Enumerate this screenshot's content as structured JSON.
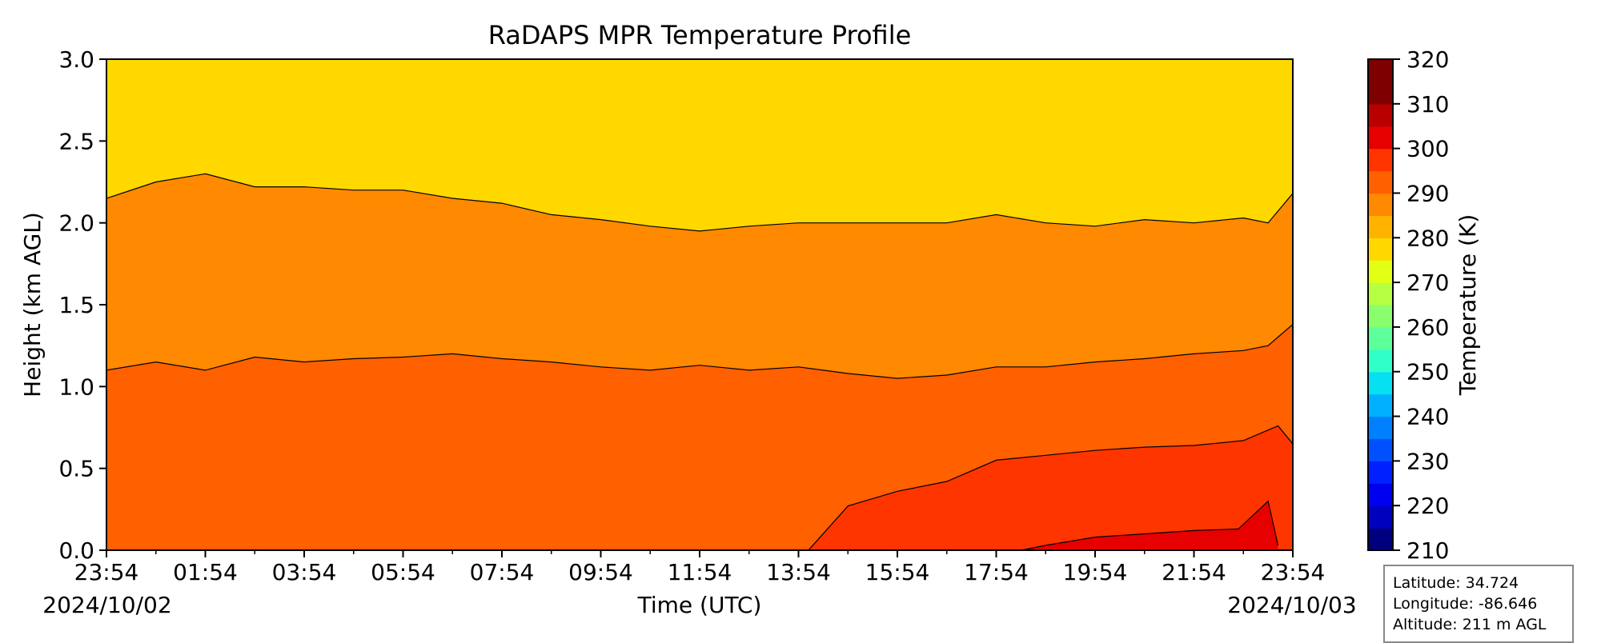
{
  "chart_data": {
    "type": "heatmap",
    "subtype": "filled-contour",
    "title": "RaDAPS MPR Temperature Profile",
    "xlabel": "Time (UTC)",
    "ylabel": "Height (km AGL)",
    "x_tick_labels": [
      "23:54",
      "01:54",
      "03:54",
      "05:54",
      "07:54",
      "09:54",
      "11:54",
      "13:54",
      "15:54",
      "17:54",
      "19:54",
      "21:54",
      "23:54"
    ],
    "x_start_date": "2024/10/02",
    "x_end_date": "2024/10/03",
    "xlim_hours": [
      0,
      24
    ],
    "ylim": [
      0,
      3.0
    ],
    "y_ticks": [
      0.0,
      0.5,
      1.0,
      1.5,
      2.0,
      2.5,
      3.0
    ],
    "y_tick_labels": [
      "0.0",
      "0.5",
      "1.0",
      "1.5",
      "2.0",
      "2.5",
      "3.0"
    ],
    "colorbar": {
      "label": "Temperature (K)",
      "min": 210,
      "max": 320,
      "step": 5,
      "tick_labels": [
        "210",
        "220",
        "230",
        "240",
        "250",
        "260",
        "270",
        "280",
        "290",
        "300",
        "310",
        "320"
      ],
      "colors": [
        "#00007f",
        "#0000bf",
        "#0000f1",
        "#0020ff",
        "#0050ff",
        "#0080ff",
        "#00b0ff",
        "#07e0f0",
        "#30ffc7",
        "#5cff9a",
        "#89ff6d",
        "#b6ff41",
        "#e3ff13",
        "#ffd800",
        "#ffb200",
        "#ff8900",
        "#ff6000",
        "#ff3500",
        "#e60000",
        "#b80000",
        "#7f0000",
        "#7f0000"
      ]
    },
    "contour_levels_K": [
      280,
      285,
      290,
      295,
      300
    ],
    "contours": [
      {
        "level": 300,
        "hours": [
          18.5,
          19,
          20,
          21,
          22,
          22.9,
          23.5,
          23.7
        ],
        "height_km": [
          0.0,
          0.03,
          0.08,
          0.1,
          0.12,
          0.13,
          0.3,
          0.03
        ]
      },
      {
        "level": 295,
        "hours": [
          14.2,
          15,
          16,
          17,
          18,
          19,
          20,
          21,
          22,
          23,
          23.7,
          24
        ],
        "height_km": [
          0.0,
          0.27,
          0.36,
          0.42,
          0.55,
          0.58,
          0.61,
          0.63,
          0.64,
          0.67,
          0.76,
          0.65
        ]
      },
      {
        "level": 290,
        "hours": [
          0,
          1,
          2,
          3,
          4,
          5,
          6,
          7,
          8,
          9,
          10,
          11,
          12,
          13,
          14,
          15,
          16,
          17,
          18,
          19,
          20,
          21,
          22,
          23,
          23.5,
          24
        ],
        "height_km": [
          1.1,
          1.15,
          1.1,
          1.18,
          1.15,
          1.17,
          1.18,
          1.2,
          1.17,
          1.15,
          1.12,
          1.1,
          1.13,
          1.1,
          1.12,
          1.08,
          1.05,
          1.07,
          1.12,
          1.12,
          1.15,
          1.17,
          1.2,
          1.22,
          1.25,
          1.38
        ]
      },
      {
        "level": 285,
        "hours": [
          0,
          1,
          2,
          3,
          4,
          5,
          6,
          7,
          8,
          9,
          10,
          11,
          12,
          13,
          14,
          15,
          16,
          17,
          18,
          19,
          20,
          21,
          22,
          23,
          23.5,
          24
        ],
        "height_km": [
          2.15,
          2.25,
          2.3,
          2.22,
          2.22,
          2.2,
          2.2,
          2.15,
          2.12,
          2.05,
          2.02,
          1.98,
          1.95,
          1.98,
          2.0,
          2.0,
          2.0,
          2.0,
          2.05,
          2.0,
          1.98,
          2.02,
          2.0,
          2.03,
          2.0,
          2.18
        ]
      }
    ]
  },
  "info_box": {
    "latitude": "Latitude: 34.724",
    "longitude": "Longitude: -86.646",
    "altitude": "Altitude: 211 m AGL"
  }
}
